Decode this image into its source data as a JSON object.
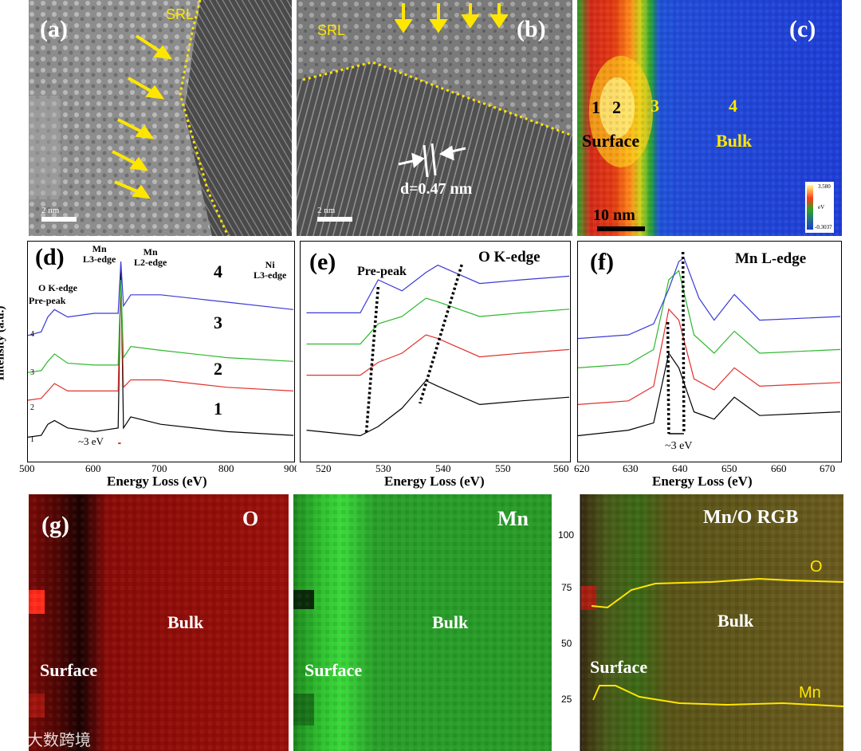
{
  "panels": {
    "a": {
      "label": "(a)",
      "srl": "SRL",
      "scale": "2 nm"
    },
    "b": {
      "label": "(b)",
      "srl": "SRL",
      "scale": "2 nm",
      "spacing": "d=0.47 nm"
    },
    "c": {
      "label": "(c)",
      "points": [
        "1",
        "2",
        "3",
        "4"
      ],
      "surface": "Surface",
      "bulk": "Bulk",
      "scale": "10 nm",
      "cbar_max": "3.580",
      "cbar_min": "-0.3037",
      "cbar_unit": "eV"
    },
    "d": {
      "label": "(d)",
      "ylabel": "Intensity (a.u.)",
      "xlabel": "Energy Loss (eV)",
      "xticks": [
        "500",
        "600",
        "700",
        "800",
        "900"
      ],
      "edge_mn_l3": "Mn\nL3-edge",
      "edge_mn_l2": "Mn\nL2-edge",
      "edge_ni_l3": "Ni\nL3-edge",
      "edge_o_k": "O K-edge",
      "prepeak": "Pre-peak",
      "shift": "~3 eV",
      "curve_labels": [
        "1",
        "2",
        "3",
        "4"
      ],
      "small_labels": [
        "1",
        "2",
        "3",
        "4"
      ]
    },
    "e": {
      "label": "(e)",
      "title": "O K-edge",
      "prepeak": "Pre-peak",
      "xlabel": "Energy Loss (eV)",
      "xticks": [
        "520",
        "530",
        "540",
        "550",
        "560"
      ]
    },
    "f": {
      "label": "(f)",
      "title": "Mn L-edge",
      "shift": "~3 eV",
      "xlabel": "Energy Loss (eV)",
      "xticks": [
        "620",
        "630",
        "640",
        "650",
        "660",
        "670"
      ]
    },
    "g1": {
      "label": "(g)",
      "element": "O",
      "surface": "Surface",
      "bulk": "Bulk"
    },
    "g2": {
      "element": "Mn",
      "surface": "Surface",
      "bulk": "Bulk"
    },
    "g3": {
      "title": "Mn/O RGB",
      "surface": "Surface",
      "bulk": "Bulk",
      "o_label": "O",
      "mn_label": "Mn",
      "yticks": [
        "100",
        "75",
        "50",
        "25"
      ]
    }
  },
  "watermark": "大数跨境",
  "colors": {
    "yellow": "#ffe600",
    "curve1": "#000000",
    "curve2": "#e0322d",
    "curve3": "#2eb82e",
    "curve4": "#3a3ad6"
  },
  "chart_data": [
    {
      "type": "line",
      "title": "",
      "xlabel": "Energy Loss (eV)",
      "ylabel": "Intensity (a.u.)",
      "xlim": [
        500,
        900
      ],
      "series": [
        {
          "name": "1",
          "x": [
            500,
            520,
            530,
            540,
            560,
            600,
            636,
            640,
            644,
            655,
            700,
            800,
            900
          ],
          "values": [
            0.05,
            0.06,
            0.12,
            0.14,
            0.1,
            0.08,
            0.1,
            0.95,
            0.1,
            0.16,
            0.12,
            0.08,
            0.06
          ]
        },
        {
          "name": "2",
          "x": [
            500,
            520,
            530,
            540,
            560,
            600,
            636,
            640,
            644,
            655,
            700,
            800,
            900
          ],
          "values": [
            0.25,
            0.26,
            0.3,
            0.34,
            0.3,
            0.3,
            0.3,
            0.9,
            0.32,
            0.36,
            0.36,
            0.32,
            0.3
          ]
        },
        {
          "name": "3",
          "x": [
            500,
            520,
            530,
            540,
            560,
            600,
            636,
            640,
            644,
            655,
            700,
            800,
            900
          ],
          "values": [
            0.4,
            0.41,
            0.46,
            0.5,
            0.45,
            0.44,
            0.44,
            0.9,
            0.48,
            0.54,
            0.52,
            0.48,
            0.46
          ]
        },
        {
          "name": "4",
          "x": [
            500,
            520,
            530,
            540,
            560,
            600,
            636,
            640,
            644,
            655,
            700,
            800,
            900
          ],
          "values": [
            0.6,
            0.62,
            0.7,
            0.74,
            0.7,
            0.72,
            0.72,
            1.0,
            0.76,
            0.82,
            0.82,
            0.78,
            0.74
          ]
        }
      ]
    },
    {
      "type": "line",
      "title": "O K-edge",
      "xlabel": "Energy Loss (eV)",
      "xlim": [
        515,
        560
      ],
      "series": [
        {
          "name": "1",
          "x": [
            516,
            525,
            528,
            532,
            536,
            538,
            545,
            552,
            560
          ],
          "values": [
            0.08,
            0.05,
            0.1,
            0.2,
            0.35,
            0.32,
            0.22,
            0.24,
            0.26
          ]
        },
        {
          "name": "2",
          "x": [
            516,
            525,
            528,
            532,
            536,
            538,
            545,
            552,
            560
          ],
          "values": [
            0.38,
            0.38,
            0.45,
            0.5,
            0.6,
            0.58,
            0.48,
            0.5,
            0.52
          ]
        },
        {
          "name": "3",
          "x": [
            516,
            525,
            528,
            532,
            536,
            538,
            545,
            552,
            560
          ],
          "values": [
            0.55,
            0.55,
            0.66,
            0.7,
            0.8,
            0.78,
            0.7,
            0.72,
            0.74
          ]
        },
        {
          "name": "4",
          "x": [
            516,
            525,
            528,
            532,
            536,
            538,
            545,
            552,
            560
          ],
          "values": [
            0.72,
            0.72,
            0.9,
            0.84,
            0.94,
            0.98,
            0.88,
            0.9,
            0.92
          ]
        }
      ]
    },
    {
      "type": "line",
      "title": "Mn L-edge",
      "xlabel": "Energy Loss (eV)",
      "xlim": [
        620,
        672
      ],
      "series": [
        {
          "name": "1",
          "x": [
            620,
            630,
            635,
            638,
            640,
            643,
            647,
            651,
            656,
            672
          ],
          "values": [
            0.05,
            0.08,
            0.12,
            0.5,
            0.42,
            0.18,
            0.14,
            0.26,
            0.16,
            0.18
          ]
        },
        {
          "name": "2",
          "x": [
            620,
            630,
            635,
            638,
            640,
            643,
            647,
            651,
            656,
            672
          ],
          "values": [
            0.22,
            0.24,
            0.32,
            0.74,
            0.68,
            0.36,
            0.3,
            0.42,
            0.32,
            0.34
          ]
        },
        {
          "name": "3",
          "x": [
            620,
            630,
            635,
            638,
            640,
            643,
            647,
            651,
            656,
            672
          ],
          "values": [
            0.42,
            0.44,
            0.52,
            0.9,
            0.95,
            0.6,
            0.5,
            0.62,
            0.5,
            0.52
          ]
        },
        {
          "name": "4",
          "x": [
            620,
            630,
            635,
            638,
            640,
            641,
            644,
            647,
            651,
            656,
            672
          ],
          "values": [
            0.58,
            0.6,
            0.66,
            0.85,
            1.0,
            1.02,
            0.8,
            0.68,
            0.82,
            0.68,
            0.7
          ]
        }
      ]
    }
  ]
}
